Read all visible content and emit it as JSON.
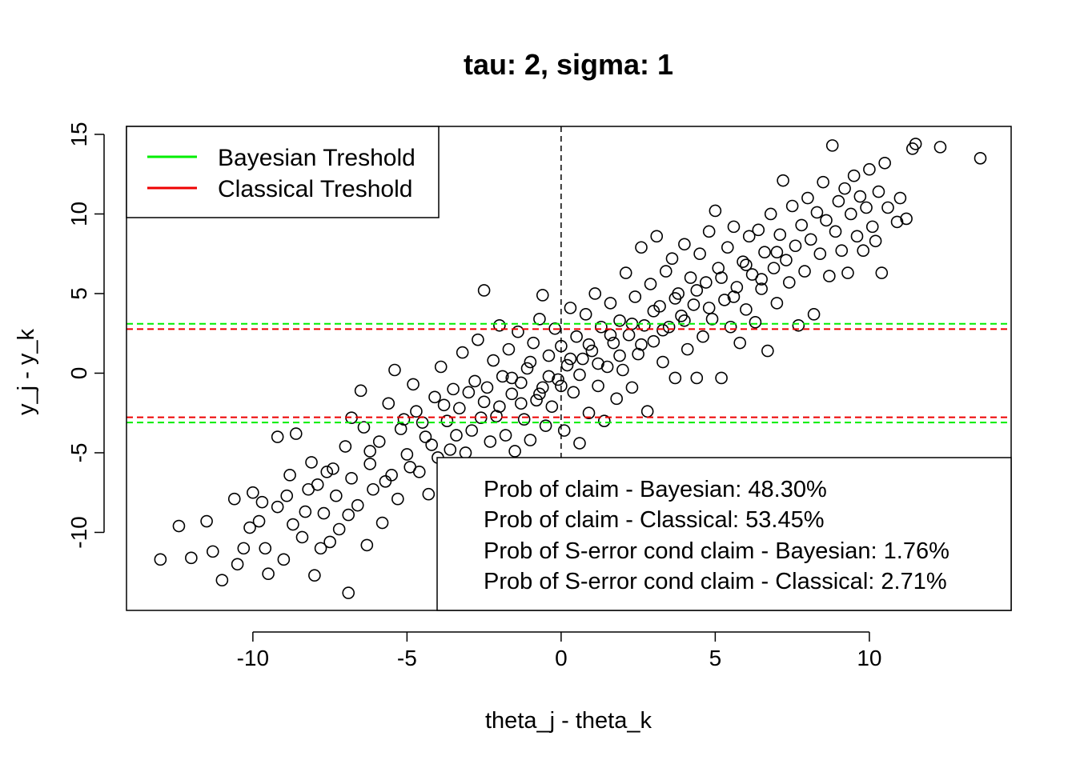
{
  "chart_data": {
    "type": "scatter",
    "title": "tau: 2, sigma: 1",
    "xlabel": "theta_j - theta_k",
    "ylabel": "y_j - y_k",
    "xlim": [
      -14.1,
      14.6
    ],
    "ylim": [
      -14.9,
      15.5
    ],
    "xticks": [
      -10,
      -5,
      0,
      5,
      10
    ],
    "yticks": [
      -10,
      -5,
      0,
      5,
      10,
      15
    ],
    "xtick_labels": [
      "-10",
      "-5",
      "0",
      "5",
      "10"
    ],
    "ytick_labels": [
      "-10",
      "-5",
      "0",
      "5",
      "10",
      "15"
    ],
    "vertical_reference": {
      "x": 0,
      "color": "#000000",
      "style": "dashed"
    },
    "thresholds": [
      {
        "name": "Bayesian Treshold",
        "color": "#00ee00",
        "values": [
          3.1,
          -3.1
        ]
      },
      {
        "name": "Classical Treshold",
        "color": "#ee0000",
        "values": [
          2.77,
          -2.77
        ]
      }
    ],
    "legend": {
      "position": "top-left",
      "entries": [
        {
          "label": "Bayesian Treshold",
          "color": "#00ee00"
        },
        {
          "label": "Classical Treshold",
          "color": "#ee0000"
        }
      ]
    },
    "annotation_box": {
      "position": "bottom-right",
      "lines": [
        "Prob of claim - Bayesian: 48.30%",
        "Prob of claim - Classical: 53.45%",
        "Prob of S-error cond claim - Bayesian: 1.76%",
        "Prob of S-error cond claim - Classical: 2.71%"
      ]
    },
    "points": [
      [
        -13.0,
        -11.7
      ],
      [
        -12.4,
        -9.6
      ],
      [
        -12.0,
        -11.6
      ],
      [
        -11.5,
        -9.3
      ],
      [
        -11.3,
        -11.2
      ],
      [
        -11.0,
        -13.0
      ],
      [
        -10.6,
        -7.9
      ],
      [
        -10.5,
        -12.0
      ],
      [
        -10.3,
        -11.0
      ],
      [
        -10.1,
        -9.7
      ],
      [
        -10.0,
        -7.5
      ],
      [
        -9.8,
        -9.3
      ],
      [
        -9.7,
        -8.1
      ],
      [
        -9.6,
        -11.0
      ],
      [
        -9.5,
        -12.6
      ],
      [
        -9.2,
        -4.0
      ],
      [
        -9.2,
        -8.4
      ],
      [
        -9.0,
        -11.7
      ],
      [
        -8.9,
        -7.7
      ],
      [
        -8.8,
        -6.4
      ],
      [
        -8.7,
        -9.5
      ],
      [
        -8.6,
        -3.8
      ],
      [
        -8.4,
        -10.3
      ],
      [
        -8.3,
        -8.7
      ],
      [
        -8.1,
        -5.6
      ],
      [
        -8.0,
        -12.7
      ],
      [
        -7.9,
        -7.0
      ],
      [
        -7.8,
        -11.0
      ],
      [
        -7.7,
        -8.8
      ],
      [
        -7.6,
        -6.2
      ],
      [
        -7.5,
        -10.6
      ],
      [
        -7.3,
        -7.7
      ],
      [
        -7.2,
        -9.8
      ],
      [
        -7.0,
        -4.6
      ],
      [
        -6.9,
        -13.8
      ],
      [
        -6.8,
        -2.8
      ],
      [
        -6.8,
        -6.6
      ],
      [
        -6.6,
        -8.3
      ],
      [
        -6.5,
        -1.1
      ],
      [
        -6.4,
        -3.4
      ],
      [
        -6.3,
        -10.8
      ],
      [
        -6.2,
        -5.7
      ],
      [
        -6.1,
        -7.3
      ],
      [
        -5.9,
        -4.3
      ],
      [
        -5.8,
        -9.4
      ],
      [
        -5.6,
        -1.9
      ],
      [
        -5.5,
        -6.4
      ],
      [
        -5.4,
        0.2
      ],
      [
        -5.3,
        -7.9
      ],
      [
        -5.2,
        -3.5
      ],
      [
        -5.0,
        -5.1
      ],
      [
        -4.8,
        -0.7
      ],
      [
        -4.7,
        -2.4
      ],
      [
        -4.6,
        -6.2
      ],
      [
        -4.4,
        -4.0
      ],
      [
        -4.3,
        -7.6
      ],
      [
        -4.1,
        -1.5
      ],
      [
        -4.0,
        -5.3
      ],
      [
        -3.9,
        0.4
      ],
      [
        -3.7,
        -3.0
      ],
      [
        -3.6,
        -4.8
      ],
      [
        -3.5,
        -1.0
      ],
      [
        -3.3,
        -2.2
      ],
      [
        -3.2,
        1.3
      ],
      [
        -3.1,
        -5.0
      ],
      [
        -2.9,
        -3.6
      ],
      [
        -2.8,
        -0.5
      ],
      [
        -2.7,
        2.1
      ],
      [
        -2.5,
        5.2
      ],
      [
        -2.5,
        -1.8
      ],
      [
        -2.3,
        -4.3
      ],
      [
        -2.2,
        0.8
      ],
      [
        -2.1,
        -2.7
      ],
      [
        -2.0,
        3.0
      ],
      [
        -1.9,
        -0.2
      ],
      [
        -1.8,
        -3.9
      ],
      [
        -1.7,
        1.5
      ],
      [
        -1.6,
        -1.3
      ],
      [
        -1.5,
        -4.9
      ],
      [
        -1.4,
        2.6
      ],
      [
        -1.3,
        -0.6
      ],
      [
        -1.2,
        -2.9
      ],
      [
        -1.1,
        0.3
      ],
      [
        -1.0,
        -4.2
      ],
      [
        -0.9,
        1.9
      ],
      [
        -0.8,
        -1.7
      ],
      [
        -0.7,
        3.4
      ],
      [
        -0.6,
        -0.9
      ],
      [
        -0.6,
        4.9
      ],
      [
        -0.5,
        -3.3
      ],
      [
        -0.4,
        1.1
      ],
      [
        -0.3,
        -2.1
      ],
      [
        -0.2,
        2.8
      ],
      [
        -0.1,
        -0.4
      ],
      [
        0.0,
        1.7
      ],
      [
        0.1,
        -3.6
      ],
      [
        0.2,
        0.5
      ],
      [
        0.3,
        4.1
      ],
      [
        0.4,
        -1.2
      ],
      [
        0.5,
        2.3
      ],
      [
        0.6,
        -4.4
      ],
      [
        0.7,
        0.9
      ],
      [
        0.8,
        3.7
      ],
      [
        0.9,
        -2.5
      ],
      [
        1.0,
        1.4
      ],
      [
        1.1,
        5.0
      ],
      [
        1.2,
        -0.8
      ],
      [
        1.3,
        2.9
      ],
      [
        1.4,
        -3.0
      ],
      [
        1.5,
        0.4
      ],
      [
        1.6,
        4.4
      ],
      [
        1.7,
        1.9
      ],
      [
        1.8,
        -1.6
      ],
      [
        1.9,
        3.3
      ],
      [
        2.0,
        0.2
      ],
      [
        2.1,
        6.3
      ],
      [
        2.2,
        2.4
      ],
      [
        2.3,
        -0.9
      ],
      [
        2.4,
        4.8
      ],
      [
        2.5,
        1.2
      ],
      [
        2.6,
        7.9
      ],
      [
        2.7,
        3.0
      ],
      [
        2.8,
        -2.4
      ],
      [
        2.9,
        5.6
      ],
      [
        3.0,
        2.0
      ],
      [
        3.1,
        8.6
      ],
      [
        3.2,
        4.2
      ],
      [
        3.3,
        0.7
      ],
      [
        3.4,
        6.4
      ],
      [
        3.5,
        2.9
      ],
      [
        3.6,
        7.2
      ],
      [
        3.7,
        -0.3
      ],
      [
        3.8,
        5.0
      ],
      [
        3.9,
        3.6
      ],
      [
        4.0,
        8.1
      ],
      [
        4.1,
        1.5
      ],
      [
        4.2,
        6.0
      ],
      [
        4.3,
        4.3
      ],
      [
        4.4,
        -0.3
      ],
      [
        4.5,
        7.5
      ],
      [
        4.6,
        2.3
      ],
      [
        4.7,
        5.7
      ],
      [
        4.8,
        8.9
      ],
      [
        4.9,
        3.4
      ],
      [
        5.0,
        10.2
      ],
      [
        5.1,
        6.6
      ],
      [
        5.2,
        -0.3
      ],
      [
        5.3,
        4.6
      ],
      [
        5.4,
        7.9
      ],
      [
        5.5,
        2.9
      ],
      [
        5.6,
        9.2
      ],
      [
        5.7,
        5.4
      ],
      [
        5.8,
        1.9
      ],
      [
        5.9,
        7.0
      ],
      [
        6.0,
        4.0
      ],
      [
        6.1,
        8.6
      ],
      [
        6.2,
        6.2
      ],
      [
        6.3,
        3.2
      ],
      [
        6.4,
        9.0
      ],
      [
        6.5,
        5.3
      ],
      [
        6.6,
        7.6
      ],
      [
        6.7,
        1.4
      ],
      [
        6.8,
        10.0
      ],
      [
        6.9,
        6.6
      ],
      [
        7.0,
        4.4
      ],
      [
        7.1,
        8.7
      ],
      [
        7.2,
        12.1
      ],
      [
        7.3,
        7.1
      ],
      [
        7.4,
        5.7
      ],
      [
        7.5,
        10.5
      ],
      [
        7.6,
        8.0
      ],
      [
        7.7,
        3.0
      ],
      [
        7.8,
        9.3
      ],
      [
        7.9,
        6.4
      ],
      [
        8.0,
        11.0
      ],
      [
        8.1,
        8.4
      ],
      [
        8.2,
        3.7
      ],
      [
        8.3,
        10.1
      ],
      [
        8.4,
        7.5
      ],
      [
        8.5,
        12.0
      ],
      [
        8.6,
        9.6
      ],
      [
        8.7,
        6.1
      ],
      [
        8.8,
        14.3
      ],
      [
        8.9,
        8.9
      ],
      [
        9.0,
        10.8
      ],
      [
        9.1,
        7.7
      ],
      [
        9.2,
        11.6
      ],
      [
        9.3,
        6.3
      ],
      [
        9.4,
        10.0
      ],
      [
        9.5,
        12.4
      ],
      [
        9.6,
        8.6
      ],
      [
        9.7,
        11.1
      ],
      [
        9.8,
        7.7
      ],
      [
        9.9,
        10.4
      ],
      [
        10.0,
        12.8
      ],
      [
        10.1,
        9.2
      ],
      [
        10.2,
        8.3
      ],
      [
        10.3,
        11.4
      ],
      [
        10.4,
        6.3
      ],
      [
        10.5,
        13.2
      ],
      [
        10.6,
        10.4
      ],
      [
        10.9,
        9.5
      ],
      [
        11.0,
        11.0
      ],
      [
        11.2,
        9.7
      ],
      [
        11.4,
        14.1
      ],
      [
        11.5,
        14.4
      ],
      [
        12.3,
        14.2
      ],
      [
        13.6,
        13.5
      ],
      [
        -8.2,
        -7.3
      ],
      [
        -7.4,
        -6.0
      ],
      [
        -6.9,
        -8.9
      ],
      [
        -6.2,
        -4.9
      ],
      [
        -5.7,
        -6.8
      ],
      [
        -5.1,
        -2.9
      ],
      [
        -4.9,
        -5.9
      ],
      [
        -4.5,
        -3.1
      ],
      [
        -4.2,
        -4.5
      ],
      [
        -3.8,
        -2.0
      ],
      [
        -3.4,
        -3.9
      ],
      [
        -3.0,
        -1.2
      ],
      [
        -2.6,
        -2.8
      ],
      [
        -2.4,
        -0.9
      ],
      [
        -2.0,
        -2.1
      ],
      [
        -1.6,
        -0.3
      ],
      [
        -1.3,
        -1.9
      ],
      [
        -1.0,
        0.7
      ],
      [
        -0.7,
        -1.3
      ],
      [
        -0.4,
        -0.2
      ],
      [
        0.0,
        -0.8
      ],
      [
        0.3,
        0.9
      ],
      [
        0.6,
        -0.1
      ],
      [
        0.9,
        1.8
      ],
      [
        1.2,
        0.6
      ],
      [
        1.6,
        2.4
      ],
      [
        1.9,
        1.1
      ],
      [
        2.3,
        3.1
      ],
      [
        2.6,
        1.8
      ],
      [
        3.0,
        3.9
      ],
      [
        3.3,
        2.7
      ],
      [
        3.7,
        4.7
      ],
      [
        4.0,
        3.3
      ],
      [
        4.4,
        5.2
      ],
      [
        4.8,
        4.1
      ],
      [
        5.2,
        6.0
      ],
      [
        5.6,
        4.8
      ],
      [
        6.0,
        6.8
      ],
      [
        6.5,
        5.9
      ],
      [
        7.0,
        7.6
      ]
    ]
  }
}
